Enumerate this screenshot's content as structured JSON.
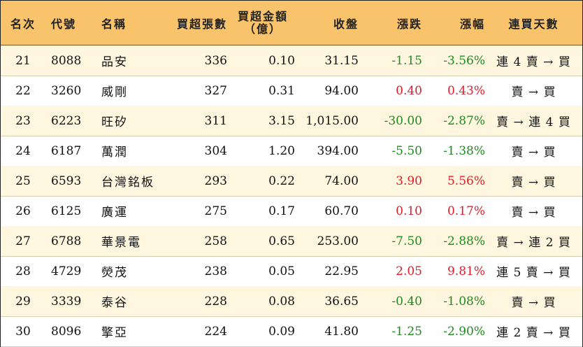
{
  "headers": {
    "rank": "名次",
    "code": "代號",
    "name": "名稱",
    "lots": "買超張數",
    "amount_line1": "買超金額",
    "amount_line2": "（億）",
    "close": "收盤",
    "change": "漲跌",
    "pct": "漲幅",
    "days": "連買天數"
  },
  "colors": {
    "header_bg": "#f8c36a",
    "alt_row_bg": "#fff6df",
    "up": "#e01c2a",
    "down": "#1e8a1e"
  },
  "rows": [
    {
      "rank": "21",
      "code": "8088",
      "name": "品安",
      "lots": "336",
      "amount": "0.10",
      "close": "31.15",
      "change": "-1.15",
      "pct": "-3.56%",
      "days": "連 4 賣 → 買"
    },
    {
      "rank": "22",
      "code": "3260",
      "name": "威剛",
      "lots": "327",
      "amount": "0.31",
      "close": "94.00",
      "change": "0.40",
      "pct": "0.43%",
      "days": "賣 → 買"
    },
    {
      "rank": "23",
      "code": "6223",
      "name": "旺矽",
      "lots": "311",
      "amount": "3.15",
      "close": "1,015.00",
      "change": "-30.00",
      "pct": "-2.87%",
      "days": "賣 → 連 4 買"
    },
    {
      "rank": "24",
      "code": "6187",
      "name": "萬潤",
      "lots": "304",
      "amount": "1.20",
      "close": "394.00",
      "change": "-5.50",
      "pct": "-1.38%",
      "days": "賣 → 買"
    },
    {
      "rank": "25",
      "code": "6593",
      "name": "台灣銘板",
      "lots": "293",
      "amount": "0.22",
      "close": "74.00",
      "change": "3.90",
      "pct": "5.56%",
      "days": "賣 → 買"
    },
    {
      "rank": "26",
      "code": "6125",
      "name": "廣運",
      "lots": "275",
      "amount": "0.17",
      "close": "60.70",
      "change": "0.10",
      "pct": "0.17%",
      "days": "賣 → 買"
    },
    {
      "rank": "27",
      "code": "6788",
      "name": "華景電",
      "lots": "258",
      "amount": "0.65",
      "close": "253.00",
      "change": "-7.50",
      "pct": "-2.88%",
      "days": "賣 → 連 2 買"
    },
    {
      "rank": "28",
      "code": "4729",
      "name": "熒茂",
      "lots": "238",
      "amount": "0.05",
      "close": "22.95",
      "change": "2.05",
      "pct": "9.81%",
      "days": "連 5 賣 → 買"
    },
    {
      "rank": "29",
      "code": "3339",
      "name": "泰谷",
      "lots": "228",
      "amount": "0.08",
      "close": "36.65",
      "change": "-0.40",
      "pct": "-1.08%",
      "days": "賣 → 買"
    },
    {
      "rank": "30",
      "code": "8096",
      "name": "擎亞",
      "lots": "224",
      "amount": "0.09",
      "close": "41.80",
      "change": "-1.25",
      "pct": "-2.90%",
      "days": "連 2 賣 → 買"
    }
  ]
}
